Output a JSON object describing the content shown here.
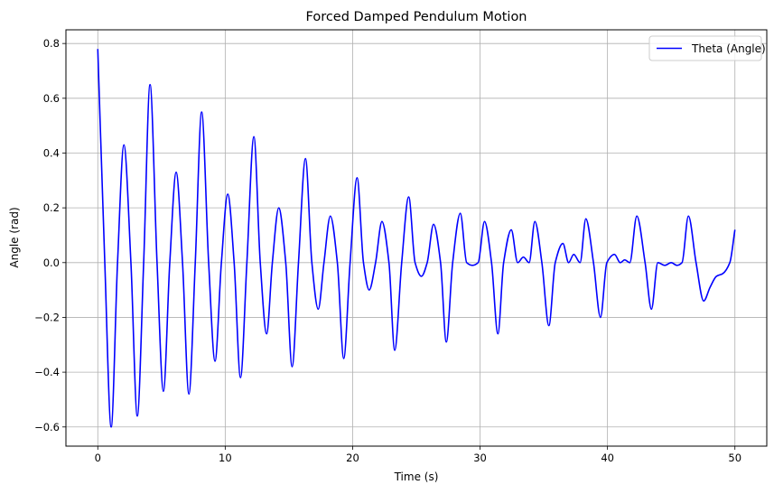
{
  "chart_data": {
    "type": "line",
    "title": "Forced Damped Pendulum Motion",
    "xlabel": "Time (s)",
    "ylabel": "Angle (rad)",
    "xlim": [
      -2.5,
      52.5
    ],
    "ylim": [
      -0.67,
      0.85
    ],
    "xticks": [
      0,
      10,
      20,
      30,
      40,
      50
    ],
    "yticks": [
      -0.6,
      -0.4,
      -0.2,
      0.0,
      0.2,
      0.4,
      0.6,
      0.8
    ],
    "xtick_labels": [
      "0",
      "10",
      "20",
      "30",
      "40",
      "50"
    ],
    "ytick_labels": [
      "−0.6",
      "−0.4",
      "−0.2",
      "0.0",
      "0.2",
      "0.4",
      "0.6",
      "0.8"
    ],
    "grid": true,
    "legend": {
      "position": "top-right",
      "entries": [
        "Theta (Angle)"
      ]
    },
    "series": [
      {
        "name": "Theta (Angle)",
        "color": "#0000ff",
        "x": [
          0,
          0.55,
          1.05,
          1.55,
          2.05,
          2.6,
          3.1,
          3.6,
          4.1,
          4.65,
          5.15,
          5.65,
          6.15,
          6.65,
          7.15,
          7.65,
          8.15,
          8.7,
          9.2,
          9.7,
          10.2,
          10.7,
          11.2,
          11.7,
          12.25,
          12.75,
          13.25,
          13.7,
          14.2,
          14.75,
          15.25,
          15.75,
          16.3,
          16.8,
          17.3,
          17.75,
          18.25,
          18.8,
          19.3,
          19.8,
          20.35,
          20.85,
          21.3,
          21.8,
          22.3,
          22.85,
          23.3,
          23.85,
          24.4,
          24.9,
          25.4,
          25.85,
          26.35,
          26.9,
          27.35,
          27.85,
          28.45,
          28.95,
          29.4,
          29.85,
          30.35,
          30.9,
          31.4,
          31.85,
          32.45,
          32.95,
          33.4,
          33.85,
          34.3,
          34.85,
          35.4,
          35.9,
          36.5,
          36.95,
          37.35,
          37.85,
          38.3,
          38.9,
          39.45,
          39.95,
          40.55,
          41.0,
          41.35,
          41.75,
          42.3,
          42.95,
          43.45,
          43.95,
          44.5,
          45.0,
          45.45,
          45.85,
          46.35,
          46.95,
          47.55,
          48.05,
          48.55,
          49.05,
          49.6,
          50.0
        ],
        "y": [
          0.78,
          0.0,
          -0.6,
          0.0,
          0.43,
          0.0,
          -0.56,
          0.0,
          0.65,
          0.0,
          -0.47,
          0.0,
          0.33,
          0.0,
          -0.48,
          0.0,
          0.55,
          0.0,
          -0.36,
          0.0,
          0.25,
          0.0,
          -0.42,
          0.0,
          0.46,
          0.0,
          -0.26,
          0.0,
          0.2,
          0.0,
          -0.38,
          0.0,
          0.38,
          0.0,
          -0.17,
          0.0,
          0.17,
          0.0,
          -0.35,
          0.0,
          0.31,
          0.0,
          -0.1,
          0.0,
          0.15,
          0.0,
          -0.32,
          0.0,
          0.24,
          0.0,
          -0.05,
          0.0,
          0.14,
          0.0,
          -0.29,
          0.0,
          0.18,
          0.0,
          -0.01,
          0.0,
          0.15,
          0.0,
          -0.26,
          0.0,
          0.12,
          0.0,
          0.02,
          0.0,
          0.15,
          0.0,
          -0.23,
          0.0,
          0.07,
          0.0,
          0.03,
          0.0,
          0.16,
          0.0,
          -0.2,
          0.0,
          0.03,
          0.0,
          0.01,
          0.0,
          0.17,
          0.0,
          -0.17,
          0.0,
          -0.01,
          0.0,
          -0.01,
          0.0,
          0.17,
          0.0,
          -0.14,
          -0.09,
          -0.05,
          -0.04,
          0.0,
          0.12
        ]
      }
    ]
  }
}
